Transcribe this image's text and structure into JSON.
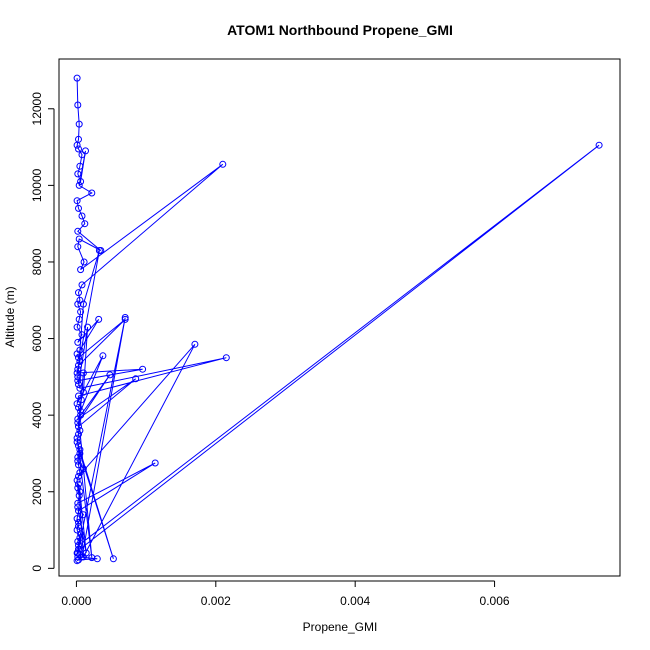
{
  "chart_data": {
    "type": "line",
    "title": "ATOM1 Northbound Propene_GMI",
    "xlabel": "Propene_GMI",
    "ylabel": "Altitude (m)",
    "xlim": [
      -0.00025,
      0.0078
    ],
    "ylim": [
      -200,
      13300
    ],
    "xticks": [
      0.0,
      0.002,
      0.004,
      0.006
    ],
    "xtick_labels": [
      "0.000",
      "0.002",
      "0.004",
      "0.006"
    ],
    "yticks": [
      0,
      2000,
      4000,
      6000,
      8000,
      10000,
      12000
    ],
    "ytick_labels": [
      "0",
      "2000",
      "4000",
      "6000",
      "8000",
      "10000",
      "12000"
    ],
    "grid": false,
    "legend": "none",
    "series": [
      {
        "color": "#0000ff",
        "marker": "open-circle",
        "x": [
          1e-05,
          2e-05,
          4e-05,
          3e-05,
          1e-05,
          3e-05,
          8e-05,
          5e-05,
          2e-05,
          6e-05,
          0.00013,
          4e-05,
          0.00022,
          1e-05,
          3e-05,
          8e-05,
          0.00012,
          2e-05,
          0.00035,
          4e-05,
          2e-05,
          0.00011,
          6e-05,
          0.0021,
          8e-05,
          3e-05,
          5e-05,
          2e-05,
          6e-05,
          4e-05,
          1e-05,
          8e-05,
          2e-05,
          0.00032,
          5e-05,
          3e-05,
          0.0007,
          3e-05,
          1e-05,
          0.00095,
          2e-05,
          5e-05,
          0.00215,
          3e-05,
          1e-05,
          0.00038,
          6e-05,
          2e-05,
          0.00085,
          3e-05,
          0.0001,
          3e-05,
          1e-05,
          5e-05,
          2e-05,
          3e-05,
          5e-05,
          1e-05,
          2e-05,
          4e-05,
          2e-05,
          0.00113,
          3e-05,
          1e-05,
          3e-05,
          6e-05,
          2e-05,
          3e-05,
          1e-05,
          5e-05,
          2e-05,
          0.0003,
          3e-05,
          1e-05,
          8e-05,
          0.0007,
          2e-05,
          5e-05,
          0.0075,
          3e-05,
          5e-05,
          1e-05,
          3e-05,
          0.0001,
          2e-05,
          0.00014,
          5e-05,
          3e-05,
          0.0001,
          0.0017,
          3e-05,
          0.0001,
          2e-05,
          5e-05,
          0.00053,
          3e-05,
          1e-05,
          0.00022,
          5e-05,
          2e-05,
          0.00048,
          6e-05,
          3e-05,
          7e-05,
          0.0001,
          0.00016,
          3e-05,
          2e-05,
          0.0001,
          0.00033,
          2e-05,
          5e-05,
          1e-05
        ],
        "y": [
          12800,
          12100,
          11600,
          11200,
          11050,
          10950,
          10800,
          10500,
          10300,
          10100,
          10900,
          10000,
          9800,
          9600,
          9400,
          9200,
          9000,
          8800,
          8300,
          8600,
          8400,
          8000,
          7800,
          10550,
          7400,
          7200,
          7000,
          6900,
          6700,
          6500,
          6300,
          6100,
          5900,
          6500,
          5700,
          5500,
          6500,
          5300,
          5100,
          5200,
          4900,
          4700,
          5500,
          4500,
          4300,
          5550,
          4100,
          3900,
          4950,
          3700,
          5100,
          3500,
          3300,
          3100,
          2900,
          2700,
          2500,
          2300,
          2100,
          1900,
          1700,
          2750,
          1500,
          1300,
          1100,
          900,
          700,
          500,
          400,
          350,
          300,
          250,
          220,
          200,
          300,
          6550,
          400,
          500,
          11050,
          600,
          800,
          1000,
          1200,
          1400,
          1600,
          400,
          2000,
          2200,
          300,
          5850,
          2400,
          2600,
          2800,
          3000,
          250,
          3200,
          3400,
          280,
          3600,
          3800,
          5050,
          4000,
          4200,
          4400,
          4600,
          6300,
          4800,
          5000,
          6900,
          8300,
          5200,
          5400,
          5600
        ]
      }
    ]
  }
}
